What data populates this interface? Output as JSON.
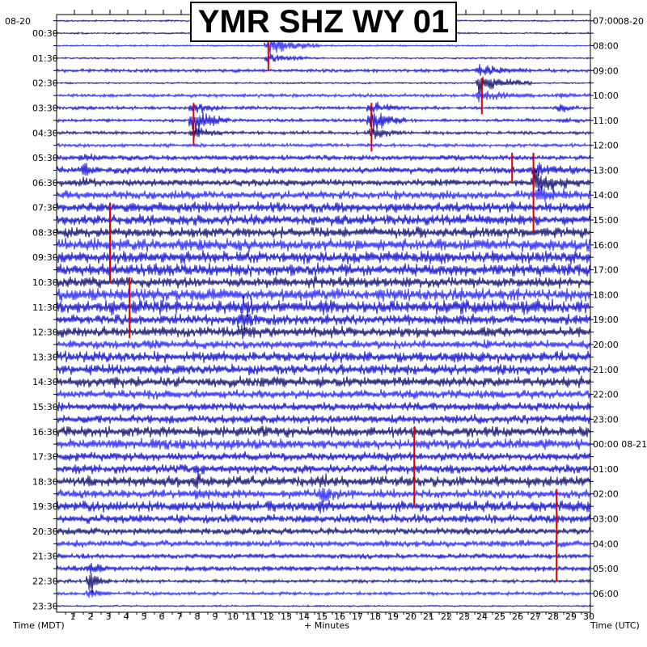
{
  "title": "YMR SHZ WY 01",
  "date_left": "08-20",
  "date_right": "08-20",
  "footer": {
    "left": "Time (MDT)",
    "center": "+ Minutes",
    "right": "Time (UTC)"
  },
  "colors": {
    "trace_primary": "#0000cc",
    "trace_dark": "#000066",
    "trace_bright": "#1a1aff",
    "pick": "#dd0000",
    "axis": "#000000",
    "background": "#ffffff"
  },
  "chart_data": {
    "type": "helicorder",
    "title": "YMR SHZ WY 01",
    "xlabel": "+ Minutes",
    "xlim": [
      0,
      30
    ],
    "x_ticks": [
      1,
      2,
      3,
      4,
      5,
      6,
      7,
      8,
      9,
      10,
      11,
      12,
      13,
      14,
      15,
      16,
      17,
      18,
      19,
      20,
      21,
      22,
      23,
      24,
      25,
      26,
      27,
      28,
      29,
      30
    ],
    "row_minutes": 30,
    "rows": 48,
    "left_labels": [
      "00:30",
      "01:30",
      "02:30",
      "03:30",
      "04:30",
      "05:30",
      "06:30",
      "07:30",
      "08:30",
      "09:30",
      "10:30",
      "11:30",
      "12:30",
      "13:30",
      "14:30",
      "15:30",
      "16:30",
      "17:30",
      "18:30",
      "19:30",
      "20:30",
      "21:30",
      "22:30",
      "23:30"
    ],
    "right_labels": [
      "07:00",
      "08:00",
      "09:00",
      "10:00",
      "11:00",
      "12:00",
      "13:00",
      "14:00",
      "15:00",
      "16:00",
      "17:00",
      "18:00",
      "19:00",
      "20:00",
      "21:00",
      "22:00",
      "23:00",
      "00:00 08-21",
      "01:00",
      "02:00",
      "03:00",
      "04:00",
      "05:00",
      "06:00"
    ],
    "row_amplitude": [
      1,
      1,
      1,
      1,
      2,
      1,
      2,
      2,
      2,
      2,
      2,
      3,
      4,
      4,
      5,
      6,
      6,
      6,
      7,
      7,
      7,
      6,
      7,
      8,
      6,
      6,
      5,
      6,
      6,
      6,
      5,
      5,
      5,
      6,
      6,
      5,
      5,
      6,
      5,
      6,
      5,
      4,
      4,
      3,
      3,
      2,
      2,
      1
    ],
    "events": [
      {
        "row": 2,
        "minute": 11.8,
        "strength": 12,
        "duration_min": 3.0
      },
      {
        "row": 5,
        "minute": 23.7,
        "strength": 14,
        "duration_min": 3.0
      },
      {
        "row": 8,
        "minute": 7.6,
        "strength": 16,
        "duration_min": 2.0
      },
      {
        "row": 8,
        "minute": 17.6,
        "strength": 16,
        "duration_min": 2.0
      },
      {
        "row": 7,
        "minute": 28.2,
        "strength": 6,
        "duration_min": 1.2
      },
      {
        "row": 12,
        "minute": 1.5,
        "strength": 8,
        "duration_min": 1.0
      },
      {
        "row": 13,
        "minute": 26.8,
        "strength": 14,
        "duration_min": 2.5
      },
      {
        "row": 24,
        "minute": 10.3,
        "strength": 12,
        "duration_min": 1.2
      },
      {
        "row": 37,
        "minute": 7.8,
        "strength": 8,
        "duration_min": 1.0
      },
      {
        "row": 38,
        "minute": 14.8,
        "strength": 9,
        "duration_min": 1.5
      },
      {
        "row": 45,
        "minute": 1.8,
        "strength": 14,
        "duration_min": 1.2
      }
    ],
    "picks": [
      {
        "row": 2,
        "minute": 11.9,
        "length_rows": 2.0
      },
      {
        "row": 7,
        "minute": 17.7,
        "length_rows": 3.5
      },
      {
        "row": 7,
        "minute": 7.7,
        "length_rows": 3.0
      },
      {
        "row": 5,
        "minute": 23.9,
        "length_rows": 2.5
      },
      {
        "row": 11,
        "minute": 25.6,
        "length_rows": 2.0
      },
      {
        "row": 11,
        "minute": 26.8,
        "length_rows": 6.0
      },
      {
        "row": 15,
        "minute": 3.0,
        "length_rows": 6.0
      },
      {
        "row": 21,
        "minute": 4.1,
        "length_rows": 4.5
      },
      {
        "row": 33,
        "minute": 20.1,
        "length_rows": 6.0
      },
      {
        "row": 38,
        "minute": 28.1,
        "length_rows": 7.0
      }
    ]
  }
}
